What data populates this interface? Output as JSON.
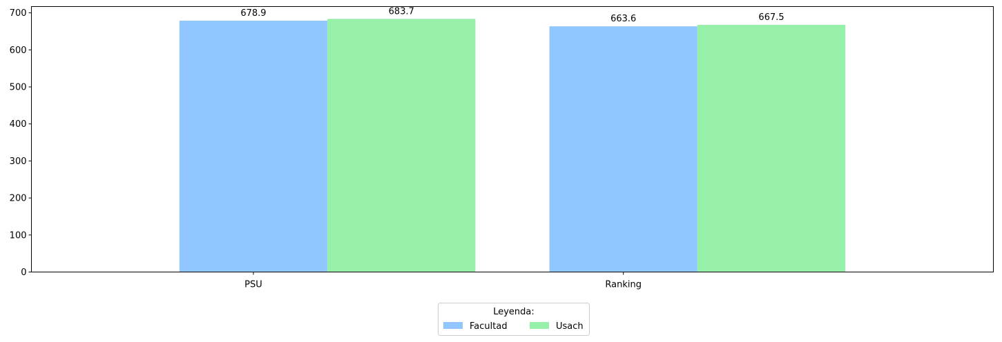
{
  "chart_data": {
    "type": "bar",
    "categories": [
      "PSU",
      "Ranking"
    ],
    "series": [
      {
        "name": "Facultad",
        "values": [
          678.9,
          663.6
        ],
        "color": "#92c6ff"
      },
      {
        "name": "Usach",
        "values": [
          683.7,
          667.5
        ],
        "color": "#97f0aa"
      }
    ],
    "ylim": [
      0,
      717
    ],
    "yticks": [
      0,
      100,
      200,
      300,
      400,
      500,
      600,
      700
    ],
    "data_labels": [
      "678.9",
      "683.7",
      "663.6",
      "667.5"
    ],
    "legend": {
      "title": "Leyenda:",
      "placement": "bottom-center",
      "columns": 2
    },
    "grid": false
  }
}
